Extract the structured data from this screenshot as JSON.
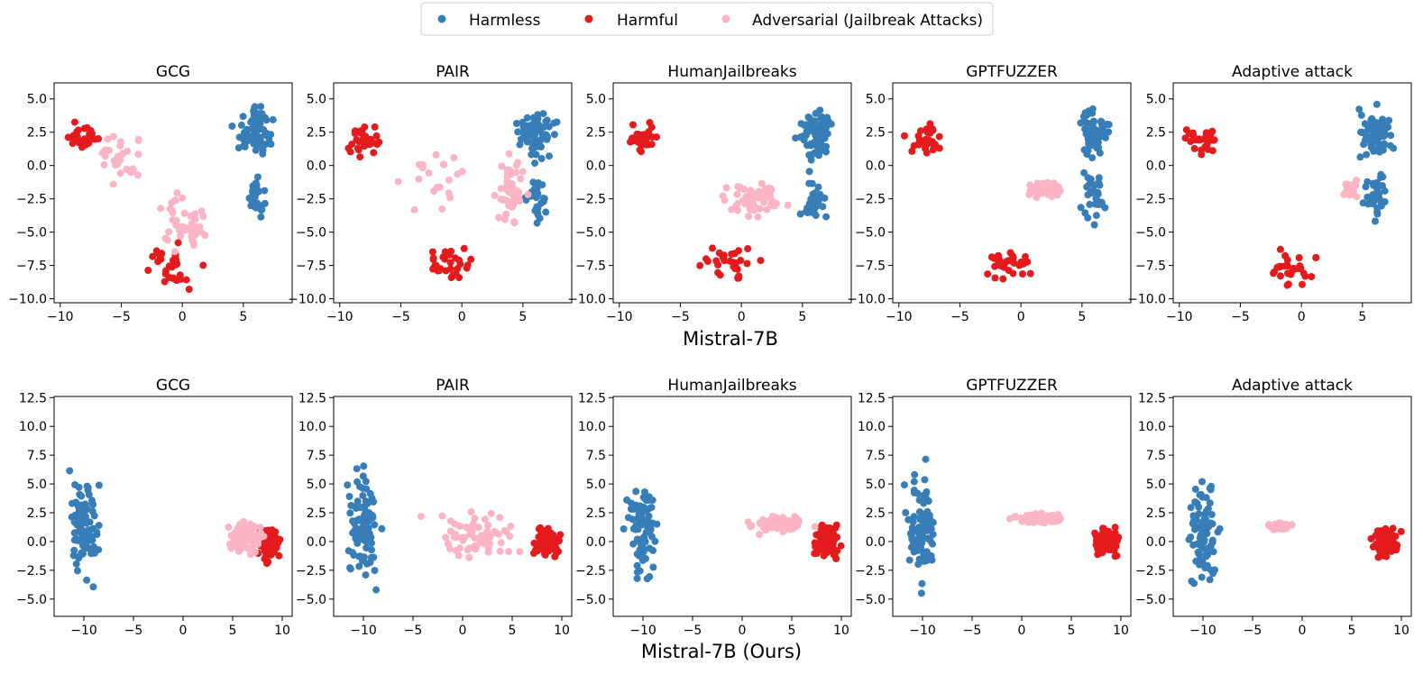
{
  "legend": {
    "items": [
      {
        "label": "Harmless",
        "color": "#377eb8"
      },
      {
        "label": "Harmful",
        "color": "#e41a1c"
      },
      {
        "label": "Adversarial (Jailbreak Attacks)",
        "color": "#fbb4c4"
      }
    ]
  },
  "rows": [
    {
      "label": "Mistral-7B"
    },
    {
      "label": "Mistral-7B (Ours)"
    }
  ],
  "chart_data": [
    {
      "type": "scatter",
      "title": "GCG",
      "row": "Mistral-7B",
      "xlim": [
        -10.5,
        9
      ],
      "ylim": [
        -10.3,
        6.2
      ],
      "xticks": [
        -10,
        -5,
        0,
        5
      ],
      "xtick_labels": [
        "−10",
        "−5",
        "0",
        "5"
      ],
      "yticks": [
        5,
        2.5,
        0,
        -2.5,
        -5,
        -7.5,
        -10
      ],
      "ytick_labels": [
        "5.0",
        "2.5",
        "0.0",
        "−2.5",
        "−5.0",
        "−7.5",
        "−10.0"
      ],
      "series": [
        {
          "name": "Harmless",
          "seed": 11
        },
        {
          "name": "Harmful",
          "seed": 12
        },
        {
          "name": "Adversarial (Jailbreak Attacks)",
          "seed": 13,
          "spread": "wide"
        }
      ]
    },
    {
      "type": "scatter",
      "title": "PAIR",
      "row": "Mistral-7B",
      "xlim": [
        -10.5,
        9
      ],
      "ylim": [
        -10.3,
        6.2
      ],
      "xticks": [
        -10,
        -5,
        0,
        5
      ],
      "xtick_labels": [
        "−10",
        "−5",
        "0",
        "5"
      ],
      "yticks": [
        5,
        2.5,
        0,
        -2.5,
        -5,
        -7.5,
        -10
      ],
      "ytick_labels": [
        "5.0",
        "2.5",
        "0.0",
        "−2.5",
        "−5.0",
        "−7.5",
        "−10.0"
      ],
      "series": [
        {
          "name": "Harmless",
          "seed": 21
        },
        {
          "name": "Harmful",
          "seed": 22
        },
        {
          "name": "Adversarial (Jailbreak Attacks)",
          "seed": 23,
          "spread": "diagonal"
        }
      ]
    },
    {
      "type": "scatter",
      "title": "HumanJailbreaks",
      "row": "Mistral-7B",
      "xlim": [
        -10.5,
        9
      ],
      "ylim": [
        -10.3,
        6.2
      ],
      "xticks": [
        -10,
        -5,
        0,
        5
      ],
      "xtick_labels": [
        "−10",
        "−5",
        "0",
        "5"
      ],
      "yticks": [
        5,
        2.5,
        0,
        -2.5,
        -5,
        -7.5,
        -10
      ],
      "ytick_labels": [
        "5.0",
        "2.5",
        "0.0",
        "−2.5",
        "−5.0",
        "−7.5",
        "−10.0"
      ],
      "series": [
        {
          "name": "Harmless",
          "seed": 31
        },
        {
          "name": "Harmful",
          "seed": 32
        },
        {
          "name": "Adversarial (Jailbreak Attacks)",
          "seed": 33,
          "spread": "middle"
        }
      ]
    },
    {
      "type": "scatter",
      "title": "GPTFUZZER",
      "row": "Mistral-7B",
      "xlim": [
        -10.5,
        9
      ],
      "ylim": [
        -10.3,
        6.2
      ],
      "xticks": [
        -10,
        -5,
        0,
        5
      ],
      "xtick_labels": [
        "−10",
        "−5",
        "0",
        "5"
      ],
      "yticks": [
        5,
        2.5,
        0,
        -2.5,
        -5,
        -7.5,
        -10
      ],
      "ytick_labels": [
        "5.0",
        "2.5",
        "0.0",
        "−2.5",
        "−5.0",
        "−7.5",
        "−10.0"
      ],
      "series": [
        {
          "name": "Harmless",
          "seed": 41
        },
        {
          "name": "Harmful",
          "seed": 42
        },
        {
          "name": "Adversarial (Jailbreak Attacks)",
          "seed": 43,
          "spread": "tight_center"
        }
      ]
    },
    {
      "type": "scatter",
      "title": "Adaptive attack",
      "row": "Mistral-7B",
      "xlim": [
        -10.5,
        9
      ],
      "ylim": [
        -10.3,
        6.2
      ],
      "xticks": [
        -10,
        -5,
        0,
        5
      ],
      "xtick_labels": [
        "−10",
        "−5",
        "0",
        "5"
      ],
      "yticks": [
        5,
        2.5,
        0,
        -2.5,
        -5,
        -7.5,
        -10
      ],
      "ytick_labels": [
        "5.0",
        "2.5",
        "0.0",
        "−2.5",
        "−5.0",
        "−7.5",
        "−10.0"
      ],
      "series": [
        {
          "name": "Harmless",
          "seed": 51
        },
        {
          "name": "Harmful",
          "seed": 52
        },
        {
          "name": "Adversarial (Jailbreak Attacks)",
          "seed": 53,
          "spread": "tight_right"
        }
      ]
    },
    {
      "type": "scatter",
      "title": "GCG",
      "row": "Mistral-7B (Ours)",
      "xlim": [
        -13,
        11
      ],
      "ylim": [
        -6.5,
        12.6
      ],
      "xticks": [
        -10,
        -5,
        0,
        5,
        10
      ],
      "xtick_labels": [
        "−10",
        "−5",
        "0",
        "5",
        "10"
      ],
      "yticks": [
        12.5,
        10,
        7.5,
        5,
        2.5,
        0,
        -2.5,
        -5
      ],
      "ytick_labels": [
        "12.5",
        "10.0",
        "7.5",
        "5.0",
        "2.5",
        "0.0",
        "−2.5",
        "−5.0"
      ],
      "series": [
        {
          "name": "Harmless",
          "seed": 61
        },
        {
          "name": "Harmful",
          "seed": 62
        },
        {
          "name": "Adversarial (Jailbreak Attacks)",
          "seed": 63,
          "spread": "overlap"
        }
      ]
    },
    {
      "type": "scatter",
      "title": "PAIR",
      "row": "Mistral-7B (Ours)",
      "xlim": [
        -13,
        11
      ],
      "ylim": [
        -6.5,
        12.6
      ],
      "xticks": [
        -10,
        -5,
        0,
        5,
        10
      ],
      "xtick_labels": [
        "−10",
        "−5",
        "0",
        "5",
        "10"
      ],
      "yticks": [
        12.5,
        10,
        7.5,
        5,
        2.5,
        0,
        -2.5,
        -5
      ],
      "ytick_labels": [
        "12.5",
        "10.0",
        "7.5",
        "5.0",
        "2.5",
        "0.0",
        "−2.5",
        "−5.0"
      ],
      "series": [
        {
          "name": "Harmless",
          "seed": 71
        },
        {
          "name": "Harmful",
          "seed": 72
        },
        {
          "name": "Adversarial (Jailbreak Attacks)",
          "seed": 73,
          "spread": "broad"
        }
      ]
    },
    {
      "type": "scatter",
      "title": "HumanJailbreaks",
      "row": "Mistral-7B (Ours)",
      "xlim": [
        -13,
        11
      ],
      "ylim": [
        -6.5,
        12.6
      ],
      "xticks": [
        -10,
        -5,
        0,
        5,
        10
      ],
      "xtick_labels": [
        "−10",
        "−5",
        "0",
        "5",
        "10"
      ],
      "yticks": [
        12.5,
        10,
        7.5,
        5,
        2.5,
        0,
        -2.5,
        -5
      ],
      "ytick_labels": [
        "12.5",
        "10.0",
        "7.5",
        "5.0",
        "2.5",
        "0.0",
        "−2.5",
        "−5.0"
      ],
      "series": [
        {
          "name": "Harmless",
          "seed": 81
        },
        {
          "name": "Harmful",
          "seed": 82
        },
        {
          "name": "Adversarial (Jailbreak Attacks)",
          "seed": 83,
          "spread": "band"
        }
      ]
    },
    {
      "type": "scatter",
      "title": "GPTFUZZER",
      "row": "Mistral-7B (Ours)",
      "xlim": [
        -13,
        11
      ],
      "ylim": [
        -6.5,
        12.6
      ],
      "xticks": [
        -10,
        -5,
        0,
        5,
        10
      ],
      "xtick_labels": [
        "−10",
        "−5",
        "0",
        "5",
        "10"
      ],
      "yticks": [
        12.5,
        10,
        7.5,
        5,
        2.5,
        0,
        -2.5,
        -5
      ],
      "ytick_labels": [
        "12.5",
        "10.0",
        "7.5",
        "5.0",
        "2.5",
        "0.0",
        "−2.5",
        "−5.0"
      ],
      "series": [
        {
          "name": "Harmless",
          "seed": 91
        },
        {
          "name": "Harmful",
          "seed": 92
        },
        {
          "name": "Adversarial (Jailbreak Attacks)",
          "seed": 93,
          "spread": "line"
        }
      ]
    },
    {
      "type": "scatter",
      "title": "Adaptive attack",
      "row": "Mistral-7B (Ours)",
      "xlim": [
        -13,
        11
      ],
      "ylim": [
        -6.5,
        12.6
      ],
      "xticks": [
        -10,
        -5,
        0,
        5,
        10
      ],
      "xtick_labels": [
        "−10",
        "−5",
        "0",
        "5",
        "10"
      ],
      "yticks": [
        12.5,
        10,
        7.5,
        5,
        2.5,
        0,
        -2.5,
        -5
      ],
      "ytick_labels": [
        "12.5",
        "10.0",
        "7.5",
        "5.0",
        "2.5",
        "0.0",
        "−2.5",
        "−5.0"
      ],
      "series": [
        {
          "name": "Harmless",
          "seed": 101
        },
        {
          "name": "Harmful",
          "seed": 102
        },
        {
          "name": "Adversarial (Jailbreak Attacks)",
          "seed": 103,
          "spread": "compact"
        }
      ]
    }
  ]
}
